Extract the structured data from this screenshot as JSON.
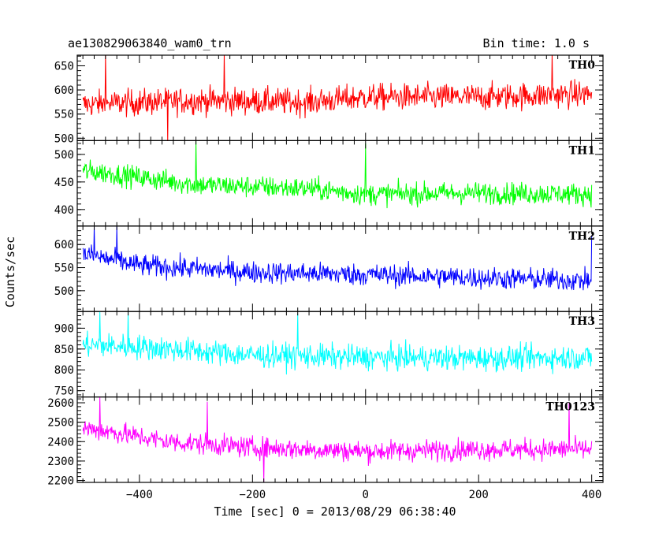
{
  "header": {
    "left_title": "ae130829063840_wam0_trn",
    "right_title": "Bin time: 1.0 s"
  },
  "chart_data": {
    "type": "line",
    "title": "ae130829063840_wam0_trn",
    "subtitle": "Bin time: 1.0 s",
    "xlabel": "Time [sec] 0 = 2013/08/29 06:38:40",
    "ylabel": "Counts/sec",
    "xlim": [
      -510,
      420
    ],
    "x_range_data": [
      -500,
      400
    ],
    "x_ticks": [
      -400,
      -200,
      0,
      200,
      400
    ],
    "x_tick_labels": [
      "−400",
      "−200",
      "0",
      "200",
      "400"
    ],
    "panels": [
      {
        "name": "TH0",
        "color": "#ff0000",
        "ylim": [
          495,
          672
        ],
        "y_ticks": [
          500,
          550,
          600,
          650
        ],
        "y_tick_labels": [
          "500",
          "550",
          "600",
          "650"
        ],
        "segments": [
          [
            -500,
            570
          ],
          [
            -300,
            578
          ],
          [
            -100,
            575
          ],
          [
            0,
            585
          ],
          [
            200,
            585
          ],
          [
            400,
            592
          ]
        ],
        "noise": 28,
        "spikes": [
          [
            -460,
            678
          ],
          [
            -350,
            490
          ],
          [
            -250,
            678
          ],
          [
            330,
            678
          ]
        ]
      },
      {
        "name": "TH1",
        "color": "#00ff00",
        "ylim": [
          370,
          525
        ],
        "y_ticks": [
          400,
          450,
          500
        ],
        "y_tick_labels": [
          "400",
          "450",
          "500"
        ],
        "segments": [
          [
            -500,
            470
          ],
          [
            -450,
            465
          ],
          [
            -300,
            445
          ],
          [
            -100,
            438
          ],
          [
            0,
            428
          ],
          [
            200,
            430
          ],
          [
            400,
            428
          ]
        ],
        "noise": 20,
        "spikes": [
          [
            -300,
            525
          ],
          [
            0,
            520
          ]
        ]
      },
      {
        "name": "TH2",
        "color": "#0000ff",
        "ylim": [
          455,
          640
        ],
        "y_ticks": [
          500,
          550,
          600
        ],
        "y_tick_labels": [
          "500",
          "550",
          "600"
        ],
        "segments": [
          [
            -500,
            580
          ],
          [
            -400,
            555
          ],
          [
            -200,
            540
          ],
          [
            0,
            535
          ],
          [
            200,
            528
          ],
          [
            400,
            522
          ]
        ],
        "noise": 24,
        "spikes": [
          [
            -480,
            640
          ],
          [
            -440,
            640
          ],
          [
            400,
            620
          ]
        ]
      },
      {
        "name": "TH3",
        "color": "#00ffff",
        "ylim": [
          735,
          940
        ],
        "y_ticks": [
          750,
          800,
          850,
          900
        ],
        "y_tick_labels": [
          "750",
          "800",
          "850",
          "900"
        ],
        "segments": [
          [
            -500,
            860
          ],
          [
            -400,
            855
          ],
          [
            -200,
            835
          ],
          [
            0,
            830
          ],
          [
            200,
            828
          ],
          [
            400,
            830
          ]
        ],
        "noise": 30,
        "spikes": [
          [
            -470,
            940
          ],
          [
            -420,
            940
          ],
          [
            -120,
            935
          ]
        ]
      },
      {
        "name": "TH0123",
        "color": "#ff00ff",
        "ylim": [
          2190,
          2630
        ],
        "y_ticks": [
          2200,
          2300,
          2400,
          2500,
          2600
        ],
        "y_tick_labels": [
          "2200",
          "2300",
          "2400",
          "2500",
          "2600"
        ],
        "segments": [
          [
            -500,
            2470
          ],
          [
            -450,
            2450
          ],
          [
            -350,
            2400
          ],
          [
            -200,
            2370
          ],
          [
            0,
            2350
          ],
          [
            200,
            2360
          ],
          [
            400,
            2360
          ]
        ],
        "noise": 55,
        "spikes": [
          [
            -470,
            2630
          ],
          [
            -280,
            2605
          ],
          [
            360,
            2600
          ],
          [
            -180,
            2190
          ]
        ]
      }
    ]
  }
}
